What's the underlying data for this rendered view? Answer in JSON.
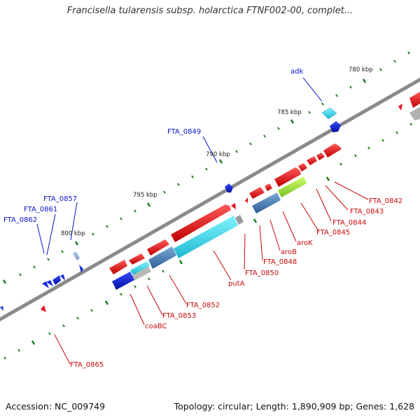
{
  "title": "Francisella tularensis subsp. holarctica FTNF002-00, complet...",
  "footer": {
    "accession": "Accession: NC_009749",
    "summary": "Topology: circular; Length: 1,890,909 bp; Genes: 1,628"
  },
  "scale_labels": [
    "780 kbp",
    "785 kbp",
    "790 kbp",
    "795 kbp",
    "800 kbp"
  ],
  "gene_labels": {
    "adk": "adk",
    "FTA_0849": "FTA_0849",
    "FTA_0857": "FTA_0857",
    "FTA_0861": "FTA_0861",
    "FTA_0862": "FTA_0862",
    "FTA_0842": "FTA_0842",
    "FTA_0843": "FTA_0843",
    "FTA_0844": "FTA_0844",
    "FTA_0845": "FTA_0845",
    "aroK": "aroK",
    "aroB": "aroB",
    "FTA_0848": "FTA_0848",
    "FTA_0850": "FTA_0850",
    "putA": "putA",
    "FTA_0852": "FTA_0852",
    "FTA_0853": "FTA_0853",
    "coaBC": "coaBC",
    "FTA_0865": "FTA_0865"
  },
  "colors": {
    "backbone": "#808080",
    "tick": "#1a7a1a",
    "forward_label": "#0a14c8",
    "reverse_label": "#c80a0a",
    "cds_red": "#e8101a",
    "cds_blue": "#1a2adc",
    "cds_cyan": "#3ad8e8",
    "cds_steel": "#4a80b8",
    "cds_lime": "#a8e83a",
    "cds_gray": "#b8b8b8"
  }
}
